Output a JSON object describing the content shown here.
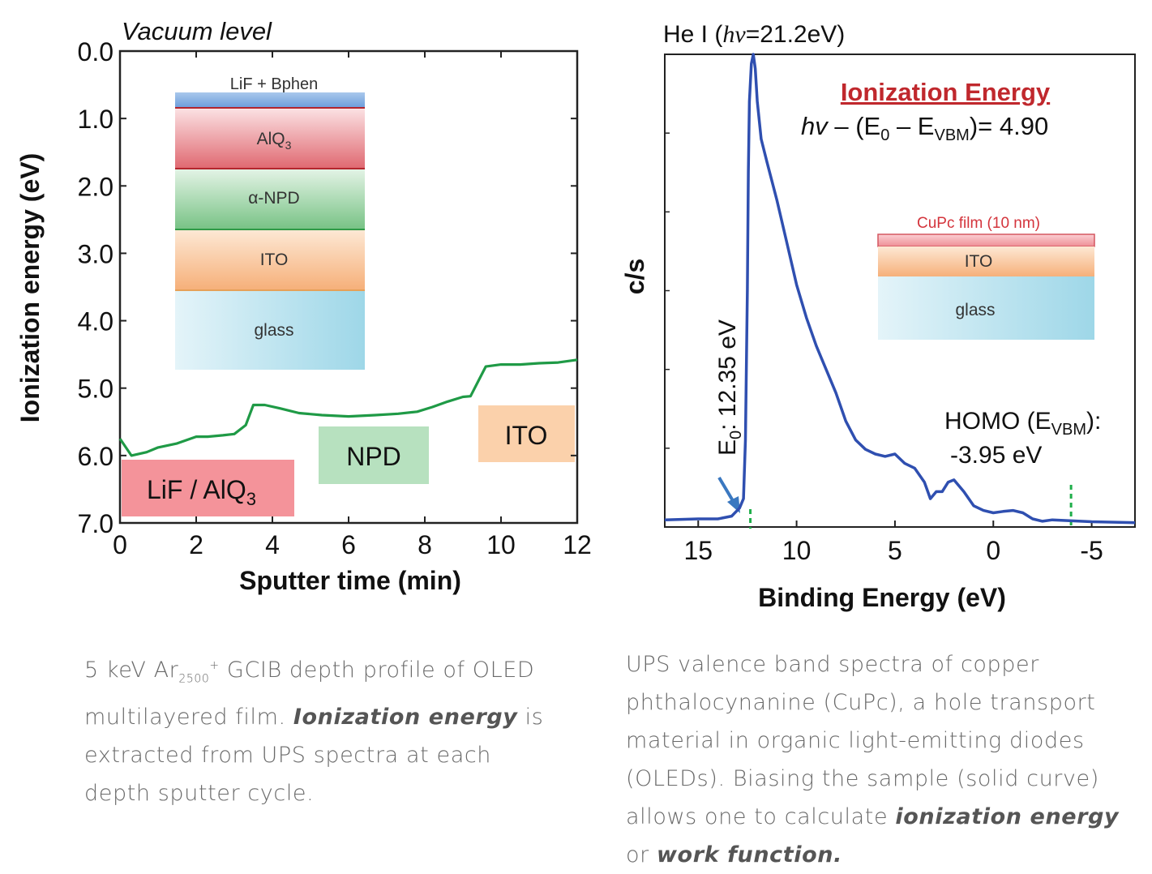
{
  "colors": {
    "depth_curve": "#1f9a46",
    "ups_curve": "#2f4fb0",
    "marker": "#1fae4a",
    "title_red": "#c0282d",
    "arrow": "#3a78c0"
  },
  "chart_data": [
    {
      "type": "line",
      "xlabel": "Sputter time (min)",
      "ylabel": "Ionization energy (eV)",
      "top_label": "Vacuum level",
      "xlim": [
        0,
        12
      ],
      "ylim": [
        7.0,
        0.0
      ],
      "y_inverted": true,
      "xticks": [
        "0",
        "2",
        "4",
        "6",
        "8",
        "10",
        "12"
      ],
      "yticks": [
        "0.0",
        "1.0",
        "2.0",
        "3.0",
        "4.0",
        "5.0",
        "6.0",
        "7.0"
      ],
      "series": [
        {
          "x": [
            0,
            0.3,
            0.7,
            1.0,
            1.5,
            2.0,
            2.3,
            2.7,
            3.0,
            3.3,
            3.5,
            3.8,
            4.2,
            4.7,
            5.3,
            6.0,
            6.7,
            7.3,
            7.8,
            8.2,
            8.6,
            9.0,
            9.2,
            9.4,
            9.6,
            10.0,
            10.5,
            11.0,
            11.5,
            12.0
          ],
          "y": [
            5.75,
            6.0,
            5.95,
            5.88,
            5.82,
            5.72,
            5.72,
            5.7,
            5.68,
            5.55,
            5.25,
            5.25,
            5.3,
            5.37,
            5.4,
            5.42,
            5.4,
            5.38,
            5.35,
            5.28,
            5.2,
            5.13,
            5.12,
            4.9,
            4.68,
            4.65,
            4.65,
            4.63,
            4.62,
            4.58
          ]
        }
      ],
      "region_labels": [
        {
          "text": "LiF / AlQ",
          "sub": "3",
          "color": "#f28d93"
        },
        {
          "text": "NPD",
          "color": "#b5e0bd"
        },
        {
          "text": "ITO",
          "color": "#fbcfa8"
        }
      ],
      "inset_layers": [
        {
          "label": "LiF + Bphen",
          "sub": ""
        },
        {
          "label": "AlQ",
          "sub": "3"
        },
        {
          "label": "α-NPD",
          "sub": ""
        },
        {
          "label": "ITO",
          "sub": ""
        },
        {
          "label": "glass",
          "sub": ""
        }
      ]
    },
    {
      "type": "line",
      "title": "He I (hν=21.2eV)",
      "xlabel": "Binding Energy (eV)",
      "ylabel": "c/s",
      "xlim": [
        16.7,
        -7.2
      ],
      "x_reversed": true,
      "xticks": [
        "15",
        "10",
        "5",
        "0",
        "-5"
      ],
      "series": [
        {
          "x": [
            16.7,
            15,
            14,
            13.3,
            12.9,
            12.7,
            12.6,
            12.5,
            12.45,
            12.4,
            12.3,
            12.2,
            12.1,
            12.0,
            11.8,
            11.5,
            11.0,
            10.5,
            10.0,
            9.5,
            9.0,
            8.5,
            8.0,
            7.5,
            7.0,
            6.5,
            6.0,
            5.5,
            5.0,
            4.5,
            4.0,
            3.5,
            3.2,
            2.9,
            2.6,
            2.3,
            2.0,
            1.5,
            1.0,
            0.5,
            0.0,
            -0.5,
            -1.0,
            -1.5,
            -2.0,
            -2.5,
            -3.0,
            -4.0,
            -5.0,
            -7.2
          ],
          "y": [
            0.01,
            0.012,
            0.012,
            0.018,
            0.035,
            0.055,
            0.18,
            0.5,
            0.75,
            0.9,
            0.98,
            1.0,
            0.97,
            0.9,
            0.82,
            0.77,
            0.69,
            0.6,
            0.51,
            0.44,
            0.38,
            0.33,
            0.28,
            0.22,
            0.18,
            0.16,
            0.15,
            0.145,
            0.15,
            0.13,
            0.12,
            0.09,
            0.055,
            0.07,
            0.07,
            0.09,
            0.095,
            0.07,
            0.04,
            0.03,
            0.025,
            0.028,
            0.03,
            0.025,
            0.012,
            0.007,
            0.01,
            0.008,
            0.006,
            0.004
          ]
        }
      ],
      "annotations": {
        "heading": "Ionization Energy",
        "formula": {
          "hv": "hv",
          "mid": " – (E",
          "sub0": "0",
          "minus": " – E",
          "subV": "VBM",
          "end": ")= 4.90"
        },
        "e0": {
          "main": "E",
          "sub": "0",
          "rest": ": 12.35 eV",
          "x": 12.35
        },
        "homo": {
          "line1": "HOMO (E",
          "sub": "VBM",
          "line1_end": "):",
          "line2": "-3.95 eV",
          "x": -3.95
        }
      },
      "inset_layers": [
        {
          "label": "CuPc film (10 nm)"
        },
        {
          "label": "ITO"
        },
        {
          "label": "glass"
        }
      ]
    }
  ],
  "captions": {
    "left": {
      "t1": "5 keV Ar",
      "sub": "2500",
      "sup": "+",
      "t2": " GCIB depth profile of OLED multilayered film.  ",
      "b1": "Ionization energy",
      "t3": " is extracted from UPS spectra at each depth sputter cycle."
    },
    "right": {
      "t1": "UPS valence band spectra of copper phthalocynanine (CuPc), a hole transport material in organic light-emitting diodes (OLEDs).  Biasing the sample (solid curve) allows one to calculate ",
      "b1": "ionization energy",
      "t2": " or ",
      "b2": "work function."
    }
  }
}
